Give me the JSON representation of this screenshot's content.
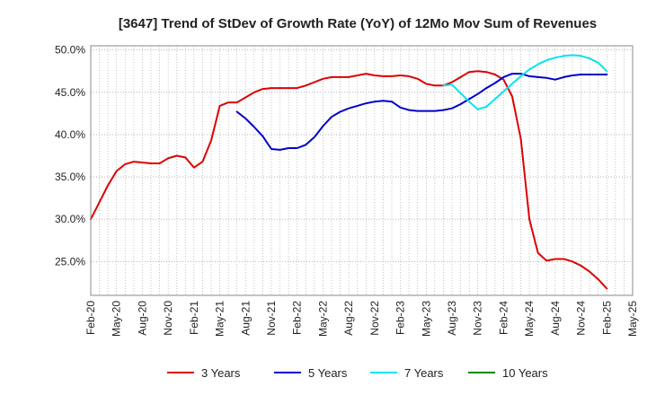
{
  "chart_data": {
    "type": "line",
    "title": "[3647]  Trend of StDev of Growth Rate (YoY) of 12Mo Mov Sum of Revenues",
    "xlabel": "",
    "ylabel": "",
    "x_tick_labels": [
      "Feb-20",
      "May-20",
      "Aug-20",
      "Nov-20",
      "Feb-21",
      "May-21",
      "Aug-21",
      "Nov-21",
      "Feb-22",
      "May-22",
      "Aug-22",
      "Nov-22",
      "Feb-23",
      "May-23",
      "Aug-23",
      "Nov-23",
      "Feb-24",
      "May-24",
      "Aug-24",
      "Nov-24",
      "Feb-25",
      "May-25"
    ],
    "y_ticks": [
      25,
      30,
      35,
      40,
      45,
      50
    ],
    "y_tick_labels": [
      "25.0%",
      "30.0%",
      "35.0%",
      "40.0%",
      "45.0%",
      "50.0%"
    ],
    "ylim": [
      21,
      50.5
    ],
    "x_range_months": [
      0,
      63
    ],
    "legend_position": "bottom",
    "grid": true,
    "series": [
      {
        "name": "3 Years",
        "color": "#dd0000",
        "x": [
          0,
          1,
          2,
          3,
          4,
          5,
          6,
          7,
          8,
          9,
          10,
          11,
          12,
          13,
          14,
          15,
          16,
          17,
          18,
          19,
          20,
          21,
          22,
          23,
          24,
          25,
          26,
          27,
          28,
          29,
          30,
          31,
          32,
          33,
          34,
          35,
          36,
          37,
          38,
          39,
          40,
          41,
          42,
          43,
          44,
          45,
          46,
          47,
          48,
          49,
          50,
          51,
          52,
          53,
          54,
          55,
          56,
          57,
          58,
          59,
          60
        ],
        "values": [
          30.0,
          32.0,
          34.0,
          35.7,
          36.5,
          36.8,
          36.7,
          36.6,
          36.6,
          37.2,
          37.5,
          37.3,
          36.1,
          36.8,
          39.3,
          43.4,
          43.8,
          43.8,
          44.4,
          45.0,
          45.4,
          45.5,
          45.5,
          45.5,
          45.5,
          45.8,
          46.2,
          46.6,
          46.8,
          46.8,
          46.8,
          47.0,
          47.2,
          47.0,
          46.9,
          46.9,
          47.0,
          46.9,
          46.6,
          46.0,
          45.8,
          45.8,
          46.2,
          46.8,
          47.4,
          47.5,
          47.4,
          47.1,
          46.5,
          44.5,
          39.5,
          30.0,
          26.0,
          25.1,
          25.3,
          25.3,
          25.0,
          24.5,
          23.8,
          22.9,
          21.8
        ]
      },
      {
        "name": "5 Years",
        "color": "#0000cc",
        "x": [
          17,
          18,
          19,
          20,
          21,
          22,
          23,
          24,
          25,
          26,
          27,
          28,
          29,
          30,
          31,
          32,
          33,
          34,
          35,
          36,
          37,
          38,
          39,
          40,
          41,
          42,
          43,
          44,
          45,
          46,
          47,
          48,
          49,
          50,
          51,
          52,
          53,
          54,
          55,
          56,
          57,
          58,
          59,
          60
        ],
        "values": [
          42.7,
          41.9,
          40.9,
          39.8,
          38.3,
          38.2,
          38.4,
          38.4,
          38.8,
          39.7,
          41.0,
          42.1,
          42.7,
          43.1,
          43.4,
          43.7,
          43.9,
          44.0,
          43.9,
          43.2,
          42.9,
          42.8,
          42.8,
          42.8,
          42.9,
          43.1,
          43.6,
          44.2,
          44.8,
          45.5,
          46.1,
          46.8,
          47.2,
          47.2,
          46.9,
          46.8,
          46.7,
          46.5,
          46.8,
          47.0,
          47.1,
          47.1,
          47.1,
          47.1
        ]
      },
      {
        "name": "7 Years",
        "color": "#00e5ee",
        "x": [
          41,
          42,
          43,
          44,
          45,
          46,
          47,
          48,
          49,
          50,
          51,
          52,
          53,
          54,
          55,
          56,
          57,
          58,
          59,
          60
        ],
        "values": [
          45.8,
          45.9,
          44.9,
          43.9,
          43.0,
          43.3,
          44.2,
          45.1,
          46.0,
          46.9,
          47.7,
          48.3,
          48.8,
          49.1,
          49.3,
          49.4,
          49.3,
          49.0,
          48.5,
          47.5
        ]
      },
      {
        "name": "10 Years",
        "color": "#008800",
        "x": [],
        "values": []
      }
    ]
  }
}
